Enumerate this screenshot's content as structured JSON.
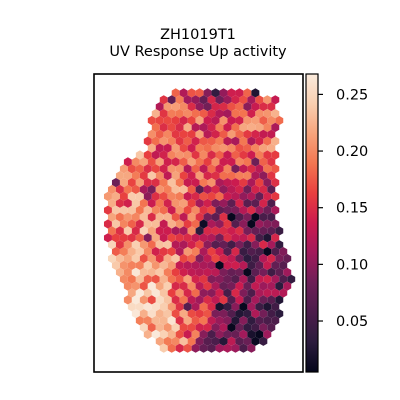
{
  "chart_data": {
    "type": "heatmap",
    "plot_style": "hexagonal spatial spot map",
    "title_lines": [
      "ZH1019T1",
      "UV Response Up activity"
    ],
    "xlabel": "",
    "ylabel": "",
    "colorbar": {
      "colormap": "rocket",
      "range": [
        0.005,
        0.268
      ],
      "ticks": [
        0.05,
        0.1,
        0.15,
        0.2,
        0.25
      ],
      "tick_labels": [
        "0.05",
        "0.10",
        "0.15",
        "0.20",
        "0.25"
      ]
    },
    "grid": false,
    "axes_ticks_visible": false,
    "region_value_summary": [
      {
        "region": "top edge",
        "typical_value": 0.07
      },
      {
        "region": "upper interior",
        "typical_value": 0.17
      },
      {
        "region": "left lobe",
        "typical_value": 0.19
      },
      {
        "region": "right-center",
        "typical_value": 0.09
      },
      {
        "region": "lower-left",
        "typical_value": 0.22
      },
      {
        "region": "lower-right",
        "typical_value": 0.06
      }
    ]
  },
  "colors": {
    "colormap_stops": [
      "#03051a",
      "#2b1b3d",
      "#4c1d4b",
      "#6e1f57",
      "#a11a5b",
      "#cb1b4f",
      "#e83f3f",
      "#f37651",
      "#f6a47c",
      "#f9cfb0",
      "#faebdd"
    ]
  }
}
